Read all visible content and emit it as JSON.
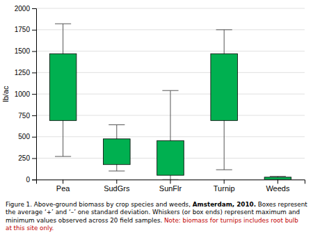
{
  "chart_data": {
    "type": "box",
    "categories": [
      "Pea",
      "SudGrs",
      "SunFlr",
      "Turnip",
      "Weeds"
    ],
    "boxes": [
      {
        "bottom": 690,
        "top": 1470,
        "whisker_low": 270,
        "whisker_high": 1820
      },
      {
        "bottom": 175,
        "top": 475,
        "whisker_low": 100,
        "whisker_high": 640
      },
      {
        "bottom": 50,
        "top": 455,
        "whisker_low": 0,
        "whisker_high": 1040
      },
      {
        "bottom": 690,
        "top": 1470,
        "whisker_low": 115,
        "whisker_high": 1750
      },
      {
        "bottom": 0,
        "top": 28,
        "whisker_low": 0,
        "whisker_high": 38
      }
    ],
    "color": "#00b050",
    "ylabel": "lb/ac",
    "ylim": [
      0,
      2000
    ],
    "yticks": [
      0,
      250,
      500,
      750,
      1000,
      1250,
      1500,
      1750,
      2000
    ],
    "grid": true,
    "annotations": [
      [
        {
          "text": "Figure 1. Above-ground biomass by crop species and weeds, "
        },
        {
          "text": "Amsterdam, 2010."
        },
        {
          "text": " Boxes represent"
        }
      ],
      [
        {
          "text": "the average ‘+’ and ‘–’ one standard deviation. Whiskers (or box ends) represent maximum and"
        }
      ],
      [
        {
          "text": "minimum values observed across 20 field samples. "
        },
        {
          "text": "Note: biomass for turnips includes root bulb",
          "color": "#c00000"
        }
      ],
      [
        {
          "text": "at this site only.",
          "color": "#c00000"
        }
      ]
    ]
  }
}
